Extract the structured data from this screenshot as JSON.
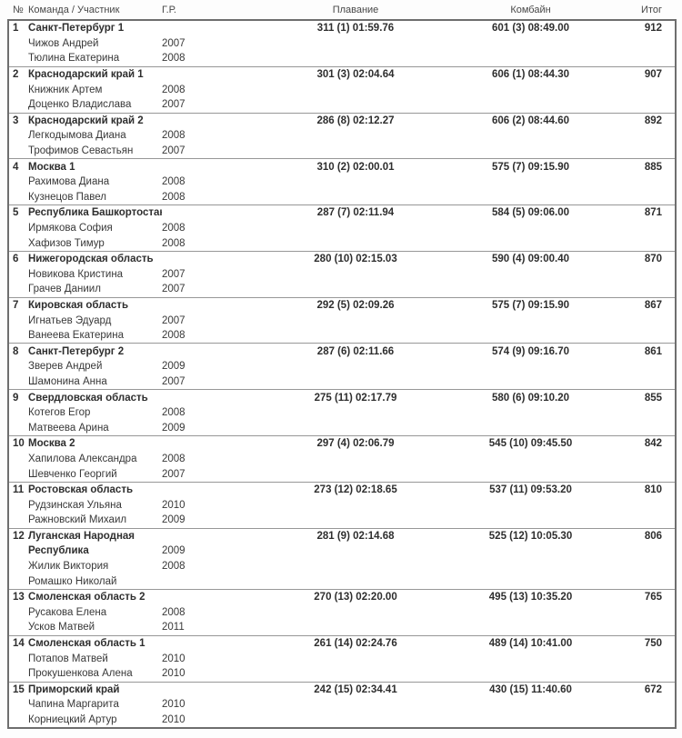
{
  "colors": {
    "border_outer": "#6e6e6e",
    "border_inner": "#979797",
    "text": "#383838",
    "text_bold": "#2e2e2e",
    "background": "#ffffff"
  },
  "table": {
    "columns": [
      "№",
      "Команда / Участник",
      "Г.Р.",
      "Плавание",
      "Комбайн",
      "Итог"
    ],
    "rows": [
      {
        "rank": "1",
        "swim": "311 (1) 01:59.76",
        "combine": "601 (3) 08:49.00",
        "total": "912",
        "lines": [
          {
            "text": "Санкт-Петербург 1",
            "bold": true,
            "year": ""
          },
          {
            "text": "Чижов Андрей",
            "bold": false,
            "year": "2007"
          },
          {
            "text": "Тюлина Екатерина",
            "bold": false,
            "year": "2008"
          }
        ]
      },
      {
        "rank": "2",
        "swim": "301 (3) 02:04.64",
        "combine": "606 (1) 08:44.30",
        "total": "907",
        "lines": [
          {
            "text": "Краснодарский край 1",
            "bold": true,
            "year": ""
          },
          {
            "text": "Книжник Артем",
            "bold": false,
            "year": "2008"
          },
          {
            "text": "Доценко Владислава",
            "bold": false,
            "year": "2007"
          }
        ]
      },
      {
        "rank": "3",
        "swim": "286 (8) 02:12.27",
        "combine": "606 (2) 08:44.60",
        "total": "892",
        "lines": [
          {
            "text": "Краснодарский край 2",
            "bold": true,
            "year": ""
          },
          {
            "text": "Легкодымова Диана",
            "bold": false,
            "year": "2008"
          },
          {
            "text": "Трофимов Севастьян",
            "bold": false,
            "year": "2007"
          }
        ]
      },
      {
        "rank": "4",
        "swim": "310 (2) 02:00.01",
        "combine": "575 (7) 09:15.90",
        "total": "885",
        "lines": [
          {
            "text": "Москва 1",
            "bold": true,
            "year": ""
          },
          {
            "text": "Рахимова Диана",
            "bold": false,
            "year": "2008"
          },
          {
            "text": "Кузнецов Павел",
            "bold": false,
            "year": "2008"
          }
        ]
      },
      {
        "rank": "5",
        "swim": "287 (7) 02:11.94",
        "combine": "584 (5) 09:06.00",
        "total": "871",
        "lines": [
          {
            "text": "Республика Башкортостан",
            "bold": true,
            "year": ""
          },
          {
            "text": "Ирмякова София",
            "bold": false,
            "year": "2008"
          },
          {
            "text": "Хафизов Тимур",
            "bold": false,
            "year": "2008"
          }
        ]
      },
      {
        "rank": "6",
        "swim": "280 (10) 02:15.03",
        "combine": "590 (4) 09:00.40",
        "total": "870",
        "lines": [
          {
            "text": "Нижегородская область",
            "bold": true,
            "year": ""
          },
          {
            "text": "Новикова Кристина",
            "bold": false,
            "year": "2007"
          },
          {
            "text": "Грачев Даниил",
            "bold": false,
            "year": "2007"
          }
        ]
      },
      {
        "rank": "7",
        "swim": "292 (5) 02:09.26",
        "combine": "575 (7) 09:15.90",
        "total": "867",
        "lines": [
          {
            "text": "Кировская область",
            "bold": true,
            "year": ""
          },
          {
            "text": "Игнатьев Эдуард",
            "bold": false,
            "year": "2007"
          },
          {
            "text": "Ванеева Екатерина",
            "bold": false,
            "year": "2008"
          }
        ]
      },
      {
        "rank": "8",
        "swim": "287 (6) 02:11.66",
        "combine": "574 (9) 09:16.70",
        "total": "861",
        "lines": [
          {
            "text": "Санкт-Петербург 2",
            "bold": true,
            "year": ""
          },
          {
            "text": "Зверев Андрей",
            "bold": false,
            "year": "2009"
          },
          {
            "text": "Шамонина Анна",
            "bold": false,
            "year": "2007"
          }
        ]
      },
      {
        "rank": "9",
        "swim": "275 (11) 02:17.79",
        "combine": "580 (6) 09:10.20",
        "total": "855",
        "lines": [
          {
            "text": "Свердловская область",
            "bold": true,
            "year": ""
          },
          {
            "text": "Котегов Егор",
            "bold": false,
            "year": "2008"
          },
          {
            "text": "Матвеева Арина",
            "bold": false,
            "year": "2009"
          }
        ]
      },
      {
        "rank": "10",
        "swim": "297 (4) 02:06.79",
        "combine": "545 (10) 09:45.50",
        "total": "842",
        "lines": [
          {
            "text": "Москва 2",
            "bold": true,
            "year": ""
          },
          {
            "text": "Хапилова Александра",
            "bold": false,
            "year": "2008"
          },
          {
            "text": "Шевченко Георгий",
            "bold": false,
            "year": "2007"
          }
        ]
      },
      {
        "rank": "11",
        "swim": "273 (12) 02:18.65",
        "combine": "537 (11) 09:53.20",
        "total": "810",
        "lines": [
          {
            "text": "Ростовская область",
            "bold": true,
            "year": ""
          },
          {
            "text": "Рудзинская Ульяна",
            "bold": false,
            "year": "2010"
          },
          {
            "text": "Ражновский Михаил",
            "bold": false,
            "year": "2009"
          }
        ]
      },
      {
        "rank": "12",
        "swim": "281 (9) 02:14.68",
        "combine": "525 (12) 10:05.30",
        "total": "806",
        "lines": [
          {
            "text": "Луганская Народная",
            "bold": true,
            "year": ""
          },
          {
            "text": "Республика",
            "bold": true,
            "year": "2009"
          },
          {
            "text": "Жилик Виктория",
            "bold": false,
            "year": "2008"
          },
          {
            "text": "Ромашко Николай",
            "bold": false,
            "year": ""
          }
        ]
      },
      {
        "rank": "13",
        "swim": "270 (13) 02:20.00",
        "combine": "495 (13) 10:35.20",
        "total": "765",
        "lines": [
          {
            "text": "Смоленская область 2",
            "bold": true,
            "year": ""
          },
          {
            "text": "Русакова Елена",
            "bold": false,
            "year": "2008"
          },
          {
            "text": "Усков Матвей",
            "bold": false,
            "year": "2011"
          }
        ]
      },
      {
        "rank": "14",
        "swim": "261 (14) 02:24.76",
        "combine": "489 (14) 10:41.00",
        "total": "750",
        "lines": [
          {
            "text": "Смоленская область 1",
            "bold": true,
            "year": ""
          },
          {
            "text": "Потапов Матвей",
            "bold": false,
            "year": "2010"
          },
          {
            "text": "Прокушенкова Алена",
            "bold": false,
            "year": "2010"
          }
        ]
      },
      {
        "rank": "15",
        "swim": "242 (15) 02:34.41",
        "combine": "430 (15) 11:40.60",
        "total": "672",
        "lines": [
          {
            "text": "Приморский край",
            "bold": true,
            "year": ""
          },
          {
            "text": "Чапина Маргарита",
            "bold": false,
            "year": "2010"
          },
          {
            "text": "Корниецкий Артур",
            "bold": false,
            "year": "2010"
          }
        ]
      }
    ]
  }
}
